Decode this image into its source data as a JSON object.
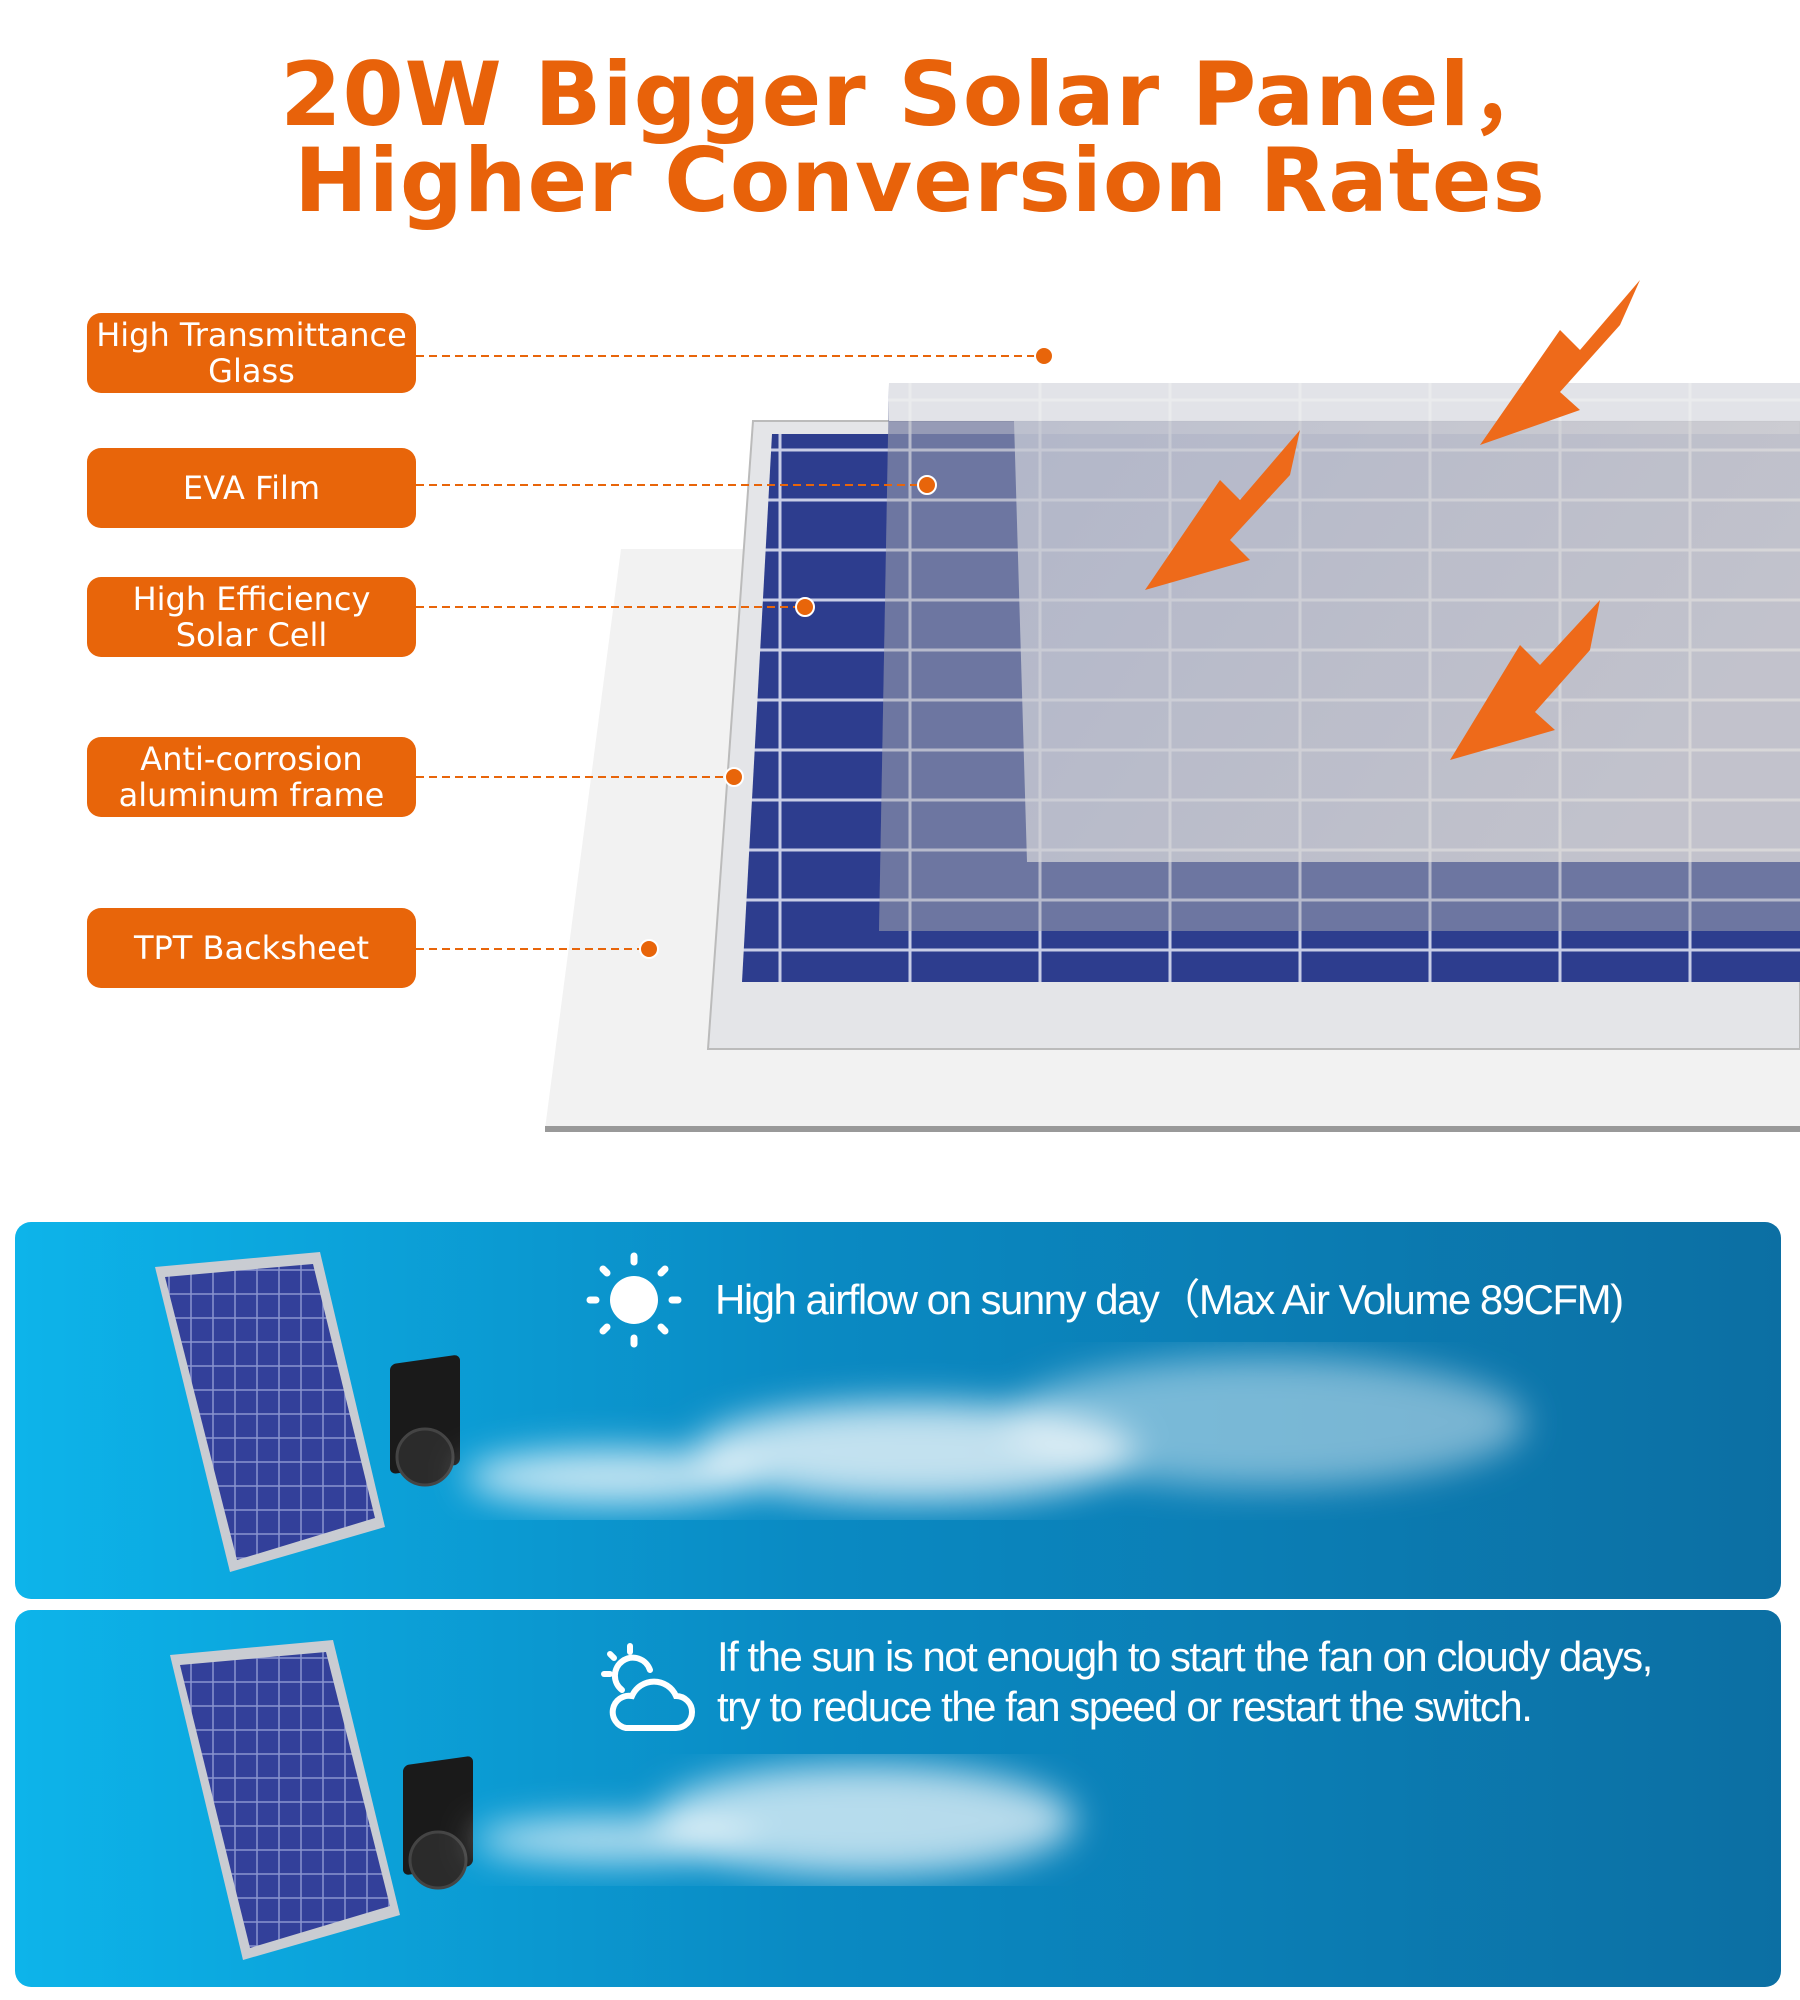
{
  "header": {
    "title_line1": "20W Bigger Solar Panel，",
    "title_line2": "Higher Conversion Rates"
  },
  "layers": [
    {
      "line1": "High Transmittance",
      "line2": "Glass"
    },
    {
      "line1": "EVA Film",
      "line2": ""
    },
    {
      "line1": "High Efficiency",
      "line2": "Solar Cell"
    },
    {
      "line1": "Anti-corrosion",
      "line2": "aluminum frame"
    },
    {
      "line1": "TPT Backsheet",
      "line2": ""
    }
  ],
  "banners": [
    {
      "icon": "sun-icon",
      "text": "High airflow on sunny day（Max Air Volume 89CFM)"
    },
    {
      "icon": "cloud-sun-icon",
      "line1": "If the sun is not enough to start the fan on cloudy days,",
      "line2": "try to reduce the fan speed or restart the switch."
    }
  ],
  "colors": {
    "accent": "#E8650A",
    "banner_left": "#0db4ea",
    "banner_right": "#0c6fa3",
    "cell_blue": "#2a3a8c"
  }
}
